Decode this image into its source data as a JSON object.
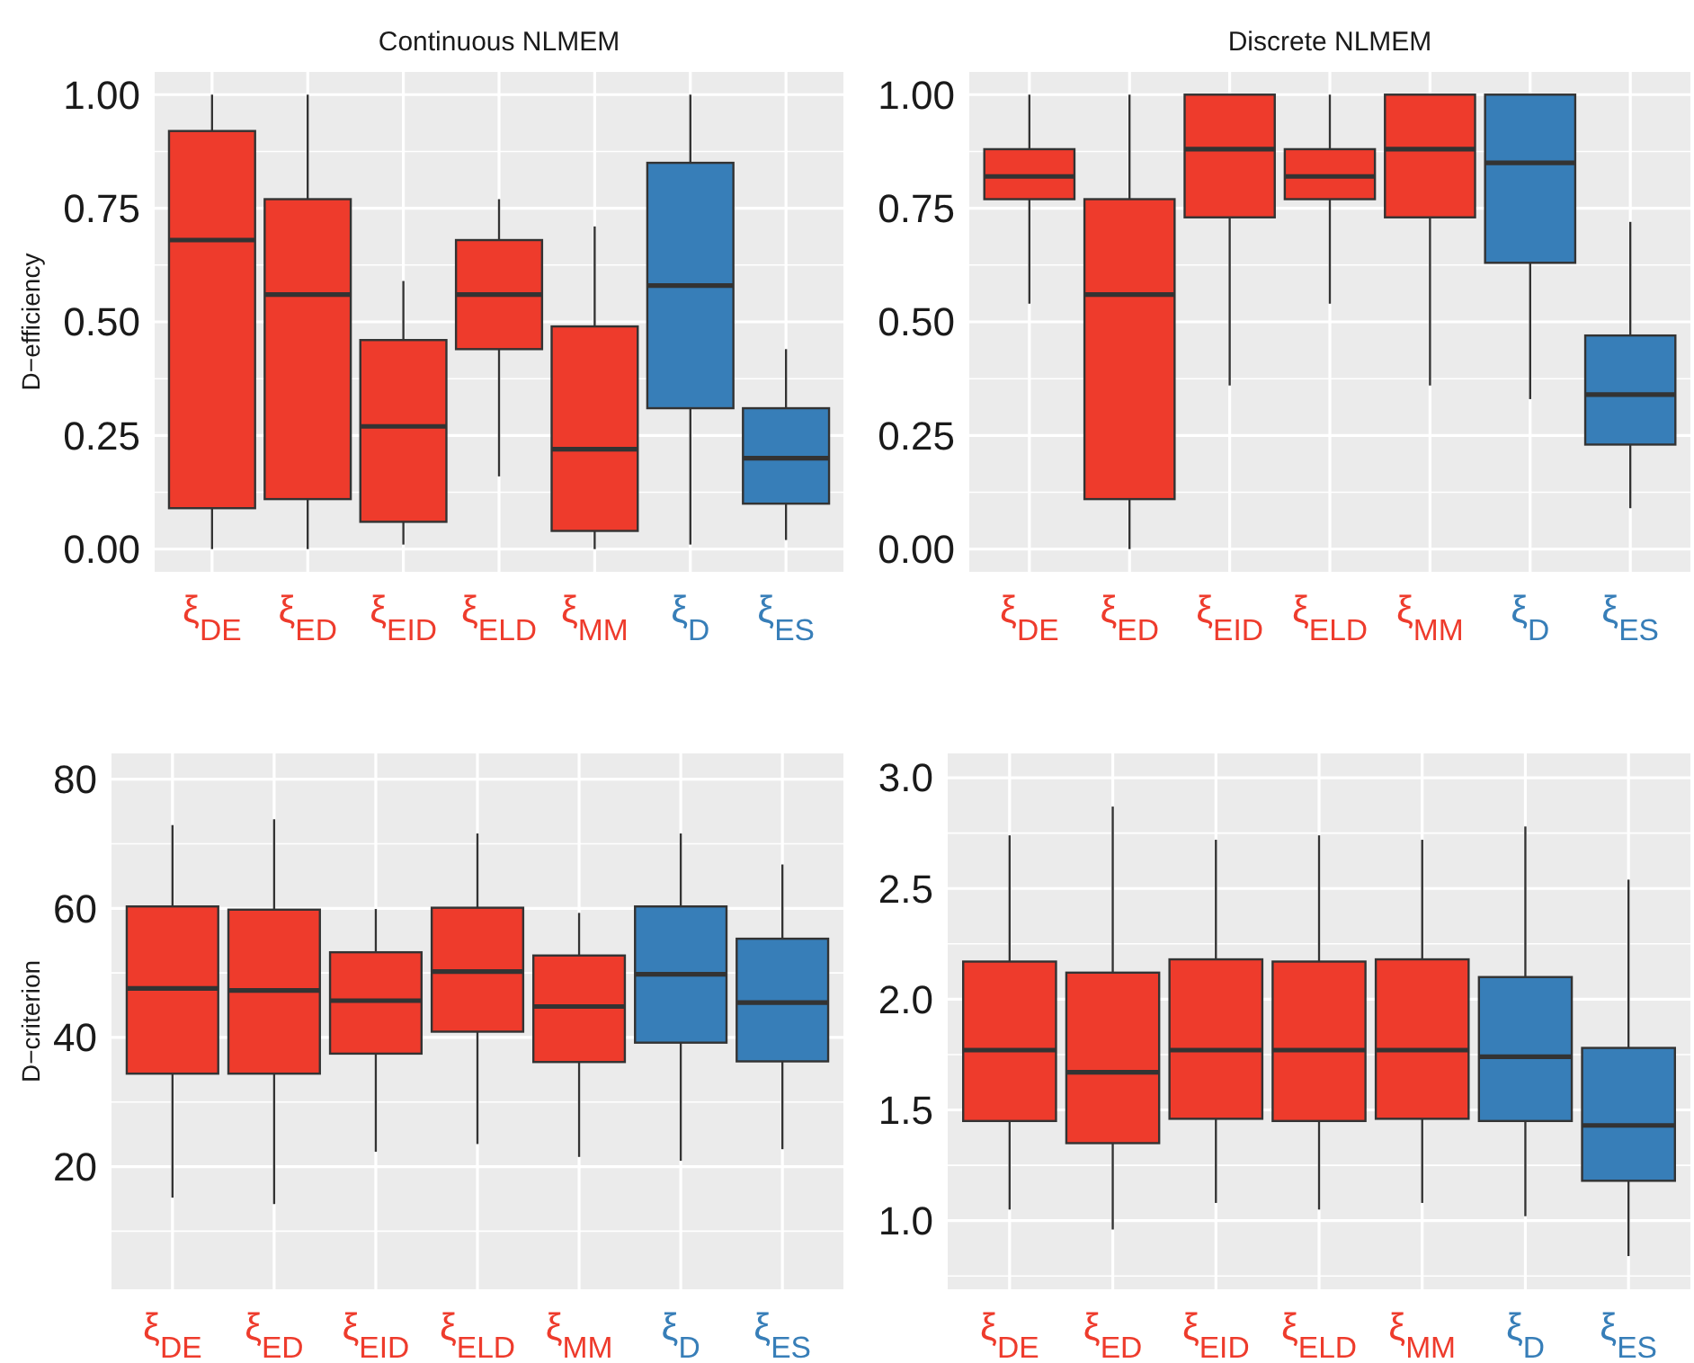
{
  "chart_data": [
    {
      "type": "box",
      "title": "Continuous NLMEM",
      "ylabel": "D−efficiency",
      "categories": [
        "ξ$_{DE}$",
        "ξ$_{ED}$",
        "ξ$_{EID}$",
        "ξ$_{ELD}$",
        "ξ$_{MM}$",
        "ξ$_{D}$",
        "ξ$_{ES}$"
      ],
      "colors": [
        "#ee3b2c",
        "#ee3b2c",
        "#ee3b2c",
        "#ee3b2c",
        "#ee3b2c",
        "#377eb8",
        "#377eb8"
      ],
      "ylim": [
        -0.05,
        1.05
      ],
      "yticks": [
        {
          "value": 0,
          "label": "0.00"
        },
        {
          "value": 0.25,
          "label": "0.25"
        },
        {
          "value": 0.5,
          "label": "0.50"
        },
        {
          "value": 0.75,
          "label": "0.75"
        },
        {
          "value": 1,
          "label": "1.00"
        }
      ],
      "grid": true,
      "boxes": [
        {
          "low": 0,
          "q1": 0.09,
          "median": 0.68,
          "q3": 0.92,
          "high": 1
        },
        {
          "low": 0,
          "q1": 0.11,
          "median": 0.56,
          "q3": 0.77,
          "high": 1
        },
        {
          "low": 0.01,
          "q1": 0.06,
          "median": 0.27,
          "q3": 0.46,
          "high": 0.59
        },
        {
          "low": 0.16,
          "q1": 0.44,
          "median": 0.56,
          "q3": 0.68,
          "high": 0.77
        },
        {
          "low": 0,
          "q1": 0.04,
          "median": 0.22,
          "q3": 0.49,
          "high": 0.71
        },
        {
          "low": 0.01,
          "q1": 0.31,
          "median": 0.58,
          "q3": 0.85,
          "high": 1
        },
        {
          "low": 0.02,
          "q1": 0.1,
          "median": 0.2,
          "q3": 0.31,
          "high": 0.44
        }
      ]
    },
    {
      "type": "box",
      "title": "Discrete NLMEM",
      "categories": [
        "ξ$_{DE}$",
        "ξ$_{ED}$",
        "ξ$_{EID}$",
        "ξ$_{ELD}$",
        "ξ$_{MM}$",
        "ξ$_{D}$",
        "ξ$_{ES}$"
      ],
      "colors": [
        "#ee3b2c",
        "#ee3b2c",
        "#ee3b2c",
        "#ee3b2c",
        "#ee3b2c",
        "#377eb8",
        "#377eb8"
      ],
      "ylim": [
        -0.05,
        1.05
      ],
      "yticks": [
        {
          "value": 0,
          "label": "0.00"
        },
        {
          "value": 0.25,
          "label": "0.25"
        },
        {
          "value": 0.5,
          "label": "0.50"
        },
        {
          "value": 0.75,
          "label": "0.75"
        },
        {
          "value": 1,
          "label": "1.00"
        }
      ],
      "grid": true,
      "boxes": [
        {
          "low": 0.54,
          "q1": 0.77,
          "median": 0.82,
          "q3": 0.88,
          "high": 1
        },
        {
          "low": 0,
          "q1": 0.11,
          "median": 0.56,
          "q3": 0.77,
          "high": 1
        },
        {
          "low": 0.36,
          "q1": 0.73,
          "median": 0.88,
          "q3": 1,
          "high": 1
        },
        {
          "low": 0.54,
          "q1": 0.77,
          "median": 0.82,
          "q3": 0.88,
          "high": 1
        },
        {
          "low": 0.36,
          "q1": 0.73,
          "median": 0.88,
          "q3": 1,
          "high": 1
        },
        {
          "low": 0.33,
          "q1": 0.63,
          "median": 0.85,
          "q3": 1,
          "high": 1
        },
        {
          "low": 0.09,
          "q1": 0.23,
          "median": 0.34,
          "q3": 0.47,
          "high": 0.72
        }
      ]
    },
    {
      "type": "box",
      "ylabel": "D−criterion",
      "categories": [
        "ξ$_{DE}$",
        "ξ$_{ED}$",
        "ξ$_{EID}$",
        "ξ$_{ELD}$",
        "ξ$_{MM}$",
        "ξ$_{D}$",
        "ξ$_{ES}$"
      ],
      "colors": [
        "#ee3b2c",
        "#ee3b2c",
        "#ee3b2c",
        "#ee3b2c",
        "#ee3b2c",
        "#377eb8",
        "#377eb8"
      ],
      "ylim": [
        1,
        84
      ],
      "yticks": [
        20,
        40,
        60,
        80
      ],
      "grid": true,
      "boxes": [
        {
          "low": 15.2,
          "q1": 34.4,
          "median": 47.6,
          "q3": 60.3,
          "high": 72.9
        },
        {
          "low": 14.2,
          "q1": 34.4,
          "median": 47.3,
          "q3": 59.8,
          "high": 73.8
        },
        {
          "low": 22.3,
          "q1": 37.5,
          "median": 45.7,
          "q3": 53.2,
          "high": 59.9
        },
        {
          "low": 23.5,
          "q1": 40.9,
          "median": 50.2,
          "q3": 60.1,
          "high": 71.6
        },
        {
          "low": 21.5,
          "q1": 36.2,
          "median": 44.8,
          "q3": 52.7,
          "high": 59.3
        },
        {
          "low": 20.9,
          "q1": 39.2,
          "median": 49.8,
          "q3": 60.3,
          "high": 71.6
        },
        {
          "low": 22.7,
          "q1": 36.3,
          "median": 45.4,
          "q3": 55.3,
          "high": 66.8
        }
      ]
    },
    {
      "type": "box",
      "categories": [
        "ξ$_{DE}$",
        "ξ$_{ED}$",
        "ξ$_{EID}$",
        "ξ$_{ELD}$",
        "ξ$_{MM}$",
        "ξ$_{D}$",
        "ξ$_{ES}$"
      ],
      "colors": [
        "#ee3b2c",
        "#ee3b2c",
        "#ee3b2c",
        "#ee3b2c",
        "#ee3b2c",
        "#377eb8",
        "#377eb8"
      ],
      "ylim": [
        0.69,
        3.11
      ],
      "yticks": [
        {
          "value": 1,
          "label": "1.0"
        },
        {
          "value": 1.5,
          "label": "1.5"
        },
        {
          "value": 2,
          "label": "2.0"
        },
        {
          "value": 2.5,
          "label": "2.5"
        },
        {
          "value": 3,
          "label": "3.0"
        }
      ],
      "grid": true,
      "boxes": [
        {
          "low": 1.05,
          "q1": 1.45,
          "median": 1.77,
          "q3": 2.17,
          "high": 2.74
        },
        {
          "low": 0.96,
          "q1": 1.35,
          "median": 1.67,
          "q3": 2.12,
          "high": 2.87
        },
        {
          "low": 1.08,
          "q1": 1.46,
          "median": 1.77,
          "q3": 2.18,
          "high": 2.72
        },
        {
          "low": 1.05,
          "q1": 1.45,
          "median": 1.77,
          "q3": 2.17,
          "high": 2.74
        },
        {
          "low": 1.08,
          "q1": 1.46,
          "median": 1.77,
          "q3": 2.18,
          "high": 2.72
        },
        {
          "low": 1.02,
          "q1": 1.45,
          "median": 1.74,
          "q3": 2.1,
          "high": 2.78
        },
        {
          "low": 0.84,
          "q1": 1.18,
          "median": 1.43,
          "q3": 1.78,
          "high": 2.54
        }
      ]
    }
  ]
}
